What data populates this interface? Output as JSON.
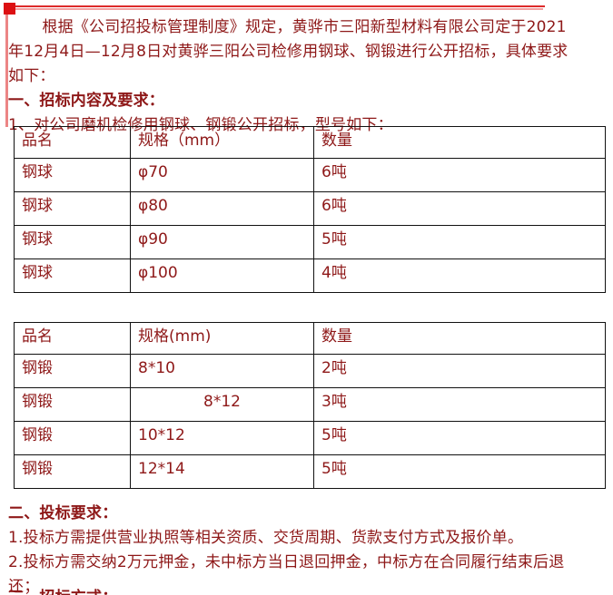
{
  "document": {
    "intro": {
      "lines": [
        "根据《公司招投标管理制度》规定，黄骅市三阳新型材料有限公司定于2021",
        "年12月4日—12月8日对黄骅三阳公司检修用钢球、钢锻进行公开招标，具体要求",
        "如下："
      ]
    },
    "section1": {
      "heading": "一、招标内容及要求：",
      "item": "1、对公司磨机检修用钢球、钢锻公开招标，型号如下："
    },
    "table1": {
      "headers": [
        "品名",
        "规格（mm）",
        "数量"
      ],
      "rows": [
        [
          "钢球",
          "φ70",
          "6吨"
        ],
        [
          "钢球",
          "φ80",
          "6吨"
        ],
        [
          "钢球",
          "φ90",
          "5吨"
        ],
        [
          "钢球",
          "φ100",
          "4吨"
        ]
      ],
      "center_cells": []
    },
    "table2": {
      "headers": [
        "品名",
        "规格(mm)",
        "数量"
      ],
      "rows": [
        [
          "钢锻",
          "8*10",
          "2吨"
        ],
        [
          "钢锻",
          "8*12",
          "3吨"
        ],
        [
          "钢锻",
          "10*12",
          "5吨"
        ],
        [
          "钢锻",
          "12*14",
          "5吨"
        ]
      ],
      "center_cells": [
        [
          1,
          1
        ]
      ]
    },
    "section2": {
      "heading": "二、投标要求：",
      "lines": [
        "1.投标方需提供营业执照等相关资质、交货周期、货款支付方式及报价单。",
        "2.投标方需交纳2万元押金，未中标方当日退回押金，中标方在合同履行结束后退",
        "还；"
      ]
    },
    "section3": {
      "heading": "三、招标方式："
    }
  },
  "colors": {
    "ink": "#8e1818",
    "accent_square": "#dc1012",
    "line_dark": "#dd2a2a",
    "line_light": "#f4a0a0",
    "left_line": "#ec8585",
    "table_border": "#111111"
  }
}
